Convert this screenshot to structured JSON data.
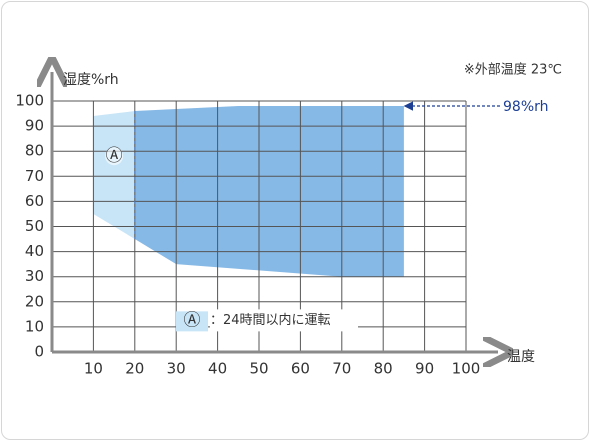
{
  "chart_data": {
    "type": "area",
    "note": "※外部温度 23℃",
    "x_label": "温度",
    "y_label": "湿度%rh",
    "xlim": [
      0,
      100
    ],
    "ylim": [
      0,
      100
    ],
    "xticks": [
      10,
      20,
      30,
      40,
      50,
      60,
      70,
      80,
      90,
      100
    ],
    "yticks": [
      0,
      10,
      20,
      30,
      40,
      50,
      60,
      70,
      80,
      90,
      100
    ],
    "grid": true,
    "series": [
      {
        "name": "Ⓐ",
        "color": "#c8e5f7",
        "x": [
          10,
          20,
          20,
          10
        ],
        "values": [
          94,
          96,
          45,
          55
        ]
      },
      {
        "color": "#87b9e6",
        "x": [
          20,
          45,
          85,
          85,
          70,
          30,
          20
        ],
        "values": [
          96,
          98,
          98,
          30,
          30,
          35,
          45
        ]
      }
    ],
    "legend_text": "：24時間以内に運転",
    "annotation": {
      "text": "98%rh",
      "y": 98,
      "color": "#1c3f94"
    }
  }
}
